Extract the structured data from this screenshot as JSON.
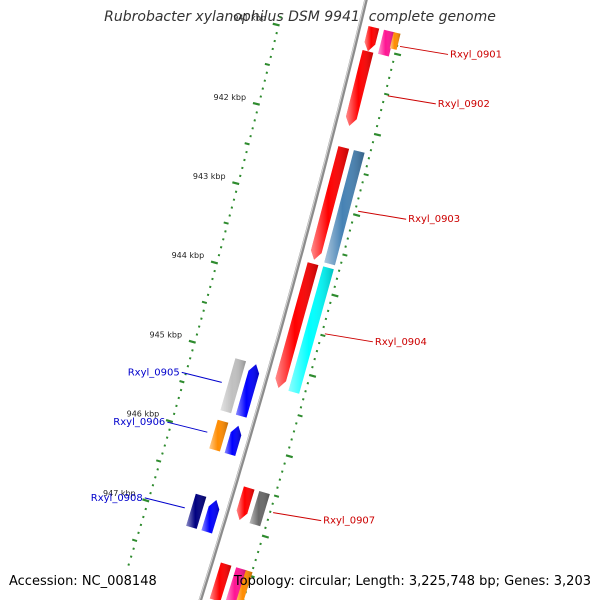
{
  "title": "Rubrobacter xylanophilus DSM 9941, complete genome",
  "footer": {
    "accession": "Accession: NC_008148",
    "topology": "Topology: circular; Length: 3,225,748 bp; Genes: 3,203"
  },
  "colors": {
    "backbone": "#8c8c8c",
    "tick": "#2e8b2e",
    "forward_label": "#cc0000",
    "reverse_label": "#0000cc"
  },
  "ticks": [
    {
      "label": "941 kbp",
      "kbp": 941
    },
    {
      "label": "942 kbp",
      "kbp": 942
    },
    {
      "label": "943 kbp",
      "kbp": 943
    },
    {
      "label": "944 kbp",
      "kbp": 944
    },
    {
      "label": "945 kbp",
      "kbp": 945
    },
    {
      "label": "946 kbp",
      "kbp": 946
    },
    {
      "label": "947 kbp",
      "kbp": 947
    }
  ],
  "genes": [
    {
      "name": "Rxyl_0901",
      "strand": "+",
      "start_kbp": 940.75,
      "end_kbp": 941.05,
      "color": "#ff0000"
    },
    {
      "name": "Rxyl_0902",
      "strand": "+",
      "start_kbp": 941.05,
      "end_kbp": 941.98,
      "color": "#ff0000"
    },
    {
      "name": "Rxyl_0903",
      "strand": "+",
      "start_kbp": 942.25,
      "end_kbp": 943.65,
      "color": "#ff0000"
    },
    {
      "name": "Rxyl_0904",
      "strand": "+",
      "start_kbp": 943.7,
      "end_kbp": 945.25,
      "color": "#ff0000"
    },
    {
      "name": "Rxyl_0905",
      "strand": "-",
      "start_kbp": 945.05,
      "end_kbp": 945.7,
      "color": "#0000ff"
    },
    {
      "name": "Rxyl_0906",
      "strand": "-",
      "start_kbp": 945.82,
      "end_kbp": 946.18,
      "color": "#0000ff"
    },
    {
      "name": "Rxyl_0907",
      "strand": "+",
      "start_kbp": 946.5,
      "end_kbp": 946.9,
      "color": "#ff0000"
    },
    {
      "name": "Rxyl_0908",
      "strand": "-",
      "start_kbp": 946.75,
      "end_kbp": 947.15,
      "color": "#0000ff"
    }
  ],
  "features": [
    {
      "track": "cds_plus",
      "start_kbp": 940.75,
      "end_kbp": 941.05,
      "color": "#ff1493"
    },
    {
      "track": "orf_plus",
      "start_kbp": 940.75,
      "end_kbp": 940.95,
      "color": "#ff8c00"
    },
    {
      "track": "cds_plus",
      "start_kbp": 942.25,
      "end_kbp": 943.65,
      "color": "#4682b4"
    },
    {
      "track": "cds_plus",
      "start_kbp": 943.7,
      "end_kbp": 945.25,
      "color": "#00ffff"
    },
    {
      "track": "cds_minus",
      "start_kbp": 945.05,
      "end_kbp": 945.7,
      "color": "#c0c0c0"
    },
    {
      "track": "cds_minus",
      "start_kbp": 945.82,
      "end_kbp": 946.18,
      "color": "#ff8c00"
    },
    {
      "track": "cds_plus",
      "start_kbp": 946.5,
      "end_kbp": 946.9,
      "color": "#696969"
    },
    {
      "track": "cds_minus",
      "start_kbp": 946.75,
      "end_kbp": 947.15,
      "color": "#000080"
    },
    {
      "track": "gene_plus",
      "start_kbp": 947.45,
      "end_kbp": 947.9,
      "color": "#ff0000"
    },
    {
      "track": "cds_plus",
      "start_kbp": 947.45,
      "end_kbp": 947.9,
      "color": "#ff1493"
    },
    {
      "track": "orf_plus",
      "start_kbp": 947.45,
      "end_kbp": 947.9,
      "color": "#ff8c00"
    }
  ]
}
